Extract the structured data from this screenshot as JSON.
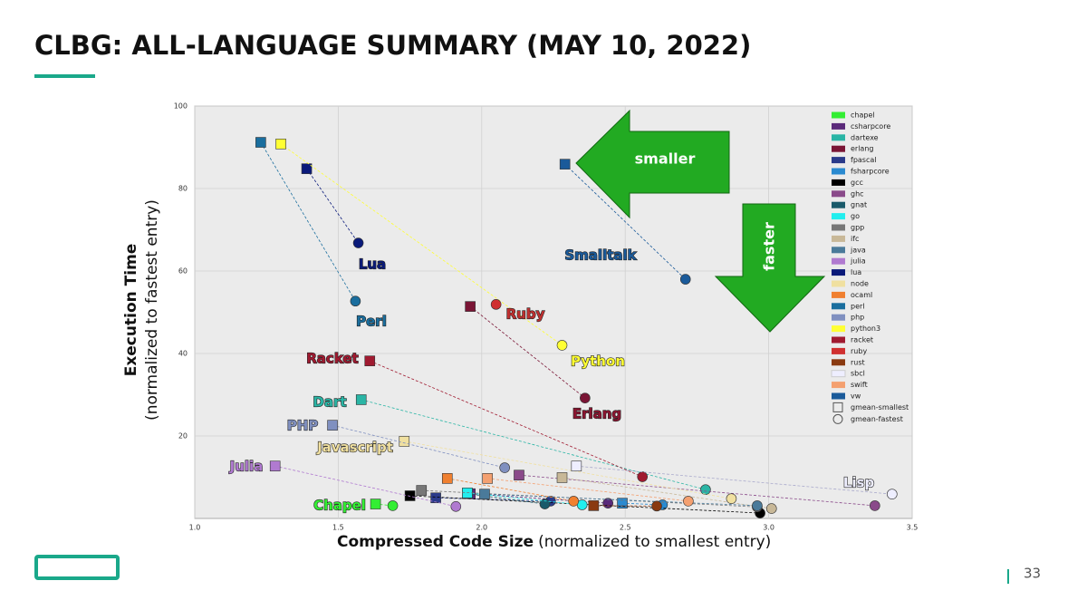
{
  "page": {
    "title": "CLBG: ALL-LANGUAGE SUMMARY (MAY 10, 2022)",
    "page_number": "33"
  },
  "chart_data": {
    "type": "scatter",
    "x_label_bold": "Compressed Code Size",
    "x_label": "(normalized to smallest entry)",
    "y_label_bold": "Execution Time",
    "y_label": "(normalized to fastest entry)",
    "xlim": [
      1.0,
      3.5
    ],
    "xticks": [
      {
        "value": 1.0,
        "label": "1.0"
      },
      1.5,
      {
        "value": 2.0,
        "label": "2.0"
      },
      2.5,
      {
        "value": 3.0,
        "label": "3.0"
      },
      3.5
    ],
    "ylim": [
      0,
      100
    ],
    "yticks": [
      20,
      40,
      60,
      80,
      100
    ],
    "grid": true,
    "legend_position": "upper right",
    "marker_legend": [
      "gmean-smallest",
      "gmean-fastest"
    ],
    "series": [
      {
        "name": "chapel",
        "color": "#33ee33",
        "x": [
          1.63,
          1.69
        ],
        "values": [
          3.5,
          3.1
        ]
      },
      {
        "name": "csharpcore",
        "color": "#5a2a7a",
        "x": [
          1.96,
          2.44
        ],
        "values": [
          6.0,
          3.7
        ]
      },
      {
        "name": "dartexe",
        "color": "#2ab5a5",
        "x": [
          1.58,
          2.78
        ],
        "values": [
          28.8,
          7.0
        ]
      },
      {
        "name": "erlang",
        "color": "#7a1535",
        "x": [
          1.96,
          2.36
        ],
        "values": [
          51.4,
          29.2
        ]
      },
      {
        "name": "fpascal",
        "color": "#2a3a8a",
        "x": [
          1.84,
          2.24
        ],
        "values": [
          5.0,
          4.2
        ]
      },
      {
        "name": "fsharpcore",
        "color": "#2a8ad0",
        "x": [
          2.49,
          2.63
        ],
        "values": [
          3.7,
          3.3
        ]
      },
      {
        "name": "gcc",
        "color": "#000000",
        "x": [
          1.75,
          2.97
        ],
        "values": [
          5.5,
          1.3
        ]
      },
      {
        "name": "ghc",
        "color": "#8a4a8a",
        "x": [
          2.13,
          3.37
        ],
        "values": [
          10.5,
          3.1
        ]
      },
      {
        "name": "gnat",
        "color": "#1a5a6a",
        "x": [
          1.95,
          2.22
        ],
        "values": [
          6.0,
          3.5
        ]
      },
      {
        "name": "go",
        "color": "#22eeee",
        "x": [
          1.95,
          2.35
        ],
        "values": [
          6.2,
          3.3
        ]
      },
      {
        "name": "gpp",
        "color": "#777777",
        "x": [
          1.79,
          2.96
        ],
        "values": [
          6.8,
          2.8
        ]
      },
      {
        "name": "ifc",
        "color": "#c8b898",
        "x": [
          2.28,
          3.01
        ],
        "values": [
          9.9,
          2.4
        ]
      },
      {
        "name": "java",
        "color": "#4a7a9a",
        "x": [
          2.01,
          2.96
        ],
        "values": [
          5.9,
          3.1
        ]
      },
      {
        "name": "julia",
        "color": "#b07ad0",
        "x": [
          1.28,
          1.91
        ],
        "values": [
          12.7,
          2.9
        ]
      },
      {
        "name": "lua",
        "color": "#0a1a7a",
        "x": [
          1.39,
          1.57
        ],
        "values": [
          84.8,
          66.8
        ]
      },
      {
        "name": "node",
        "color": "#f0e0a0",
        "x": [
          1.73,
          2.87
        ],
        "values": [
          18.7,
          4.8
        ]
      },
      {
        "name": "ocaml",
        "color": "#f08030",
        "x": [
          1.88,
          2.32
        ],
        "values": [
          9.7,
          4.2
        ]
      },
      {
        "name": "perl",
        "color": "#1a6e9e",
        "x": [
          1.23,
          1.56
        ],
        "values": [
          91.2,
          52.7
        ]
      },
      {
        "name": "php",
        "color": "#8090c0",
        "x": [
          1.48,
          2.08
        ],
        "values": [
          22.6,
          12.3
        ]
      },
      {
        "name": "python3",
        "color": "#ffff33",
        "x": [
          1.3,
          2.28
        ],
        "values": [
          90.8,
          42.0
        ]
      },
      {
        "name": "racket",
        "color": "#a01a30",
        "x": [
          1.61,
          2.56
        ],
        "values": [
          38.2,
          10.1
        ]
      },
      {
        "name": "ruby",
        "color": "#d03030",
        "x": [
          null,
          2.05
        ],
        "values": [
          null,
          51.9
        ]
      },
      {
        "name": "rust",
        "color": "#8a3a10",
        "x": [
          2.39,
          2.61
        ],
        "values": [
          3.1,
          3.0
        ]
      },
      {
        "name": "sbcl",
        "color": "#eeeeff",
        "x": [
          2.33,
          3.43
        ],
        "values": [
          12.7,
          5.9
        ]
      },
      {
        "name": "swift",
        "color": "#f4a070",
        "x": [
          2.02,
          2.72
        ],
        "values": [
          9.7,
          4.2
        ]
      },
      {
        "name": "vw",
        "color": "#1a5a9a",
        "x": [
          2.29,
          2.71
        ],
        "values": [
          85.9,
          58.0
        ]
      }
    ],
    "annotations": [
      {
        "text": "Lua",
        "color": "#0a1a7a"
      },
      {
        "text": "Perl",
        "color": "#1a6e9e"
      },
      {
        "text": "Ruby",
        "color": "#c03030"
      },
      {
        "text": "Python",
        "color": "#ffff33"
      },
      {
        "text": "Racket",
        "color": "#a01a30"
      },
      {
        "text": "Erlang",
        "color": "#8a1530"
      },
      {
        "text": "Smalltalk",
        "color": "#1a5a9a"
      },
      {
        "text": "Dart",
        "color": "#2ab5a5"
      },
      {
        "text": "PHP",
        "color": "#8090c0"
      },
      {
        "text": "Javascript",
        "color": "#f0e0a0"
      },
      {
        "text": "Julia",
        "color": "#b07ad0"
      },
      {
        "text": "Lisp",
        "color": "#eeeeff"
      },
      {
        "text": "Chapel",
        "color": "#33ee33"
      }
    ],
    "arrows": [
      "smaller",
      "faster"
    ]
  }
}
